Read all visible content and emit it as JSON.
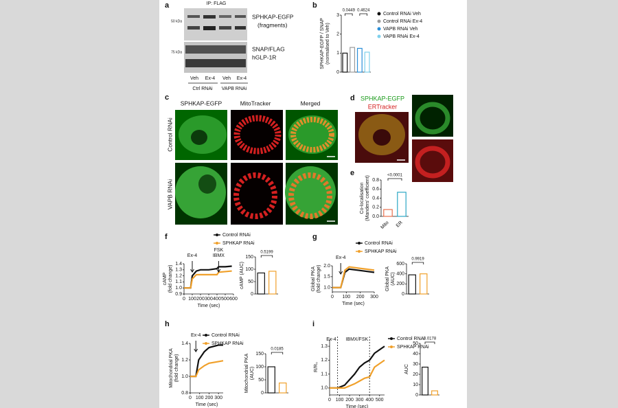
{
  "figure": {
    "a": {
      "panel": "a",
      "header": "IP: FLAG",
      "markers": [
        "50 kDa",
        "75 kDa"
      ],
      "band_labels": [
        "SPHKAP-EGFP",
        "(fragments)",
        "SNAP/FLAG",
        "hGLP-1R"
      ],
      "lanes": [
        "Veh",
        "Ex-4",
        "Veh",
        "Ex-4"
      ],
      "groups": [
        "Ctrl RNAi",
        "VAPB RNAi"
      ]
    },
    "c": {
      "panel": "c",
      "columns": [
        "SPHKAP-EGFP",
        "MitoTracker",
        "Merged"
      ],
      "rows": [
        "Control RNAi",
        "VAPB RNAi"
      ]
    },
    "d": {
      "panel": "d",
      "title_green": "SPHKAP-EGFP",
      "title_red": "ERTracker"
    }
  },
  "chart_data": [
    {
      "type": "bar",
      "panel": "b",
      "ylabel": [
        "SPHKAP-EGFP / SNAP",
        "(normalised to Veh)"
      ],
      "ylim": [
        0,
        3
      ],
      "yticks": [
        0,
        1,
        2,
        3
      ],
      "annotations": [
        "0.0449",
        "0.4624"
      ],
      "series": [
        {
          "name": "Control RNAi Veh",
          "color": "#111111",
          "values": [
            1.0
          ]
        },
        {
          "name": "Control RNAi Ex-4",
          "color": "#9a9a9a",
          "values": [
            1.3
          ]
        },
        {
          "name": "VAPB RNAi Veh",
          "color": "#2a8fd8",
          "values": [
            1.25
          ]
        },
        {
          "name": "VAPB RNAi Ex-4",
          "color": "#7fd0ec",
          "values": [
            1.05
          ]
        }
      ]
    },
    {
      "type": "bar",
      "panel": "e",
      "ylabel": [
        "Co-localisation",
        "(Manders' coefficient)"
      ],
      "categories": [
        "Mito",
        "ER"
      ],
      "values": [
        0.15,
        0.53
      ],
      "colors": [
        "#e8704d",
        "#2aa6c4"
      ],
      "ylim": [
        0,
        0.8
      ],
      "yticks": [
        {
          "value": 0,
          "label": "0.0"
        },
        0.2,
        0.4,
        0.6,
        0.8
      ],
      "annotations": [
        "<0.0001"
      ]
    },
    {
      "type": "line",
      "panel": "f",
      "ylabel": [
        "cAMP",
        "(fold change)"
      ],
      "xlabel": "Time (sec)",
      "xlim": [
        0,
        600
      ],
      "xticks": [
        0,
        100,
        200,
        300,
        400,
        500,
        600
      ],
      "ylim": [
        0.9,
        1.4
      ],
      "yticks": [
        0.9,
        {
          "value": 1.0,
          "label": "1.0"
        },
        1.1,
        1.2,
        1.3,
        1.4
      ],
      "events_style": "arrow",
      "events": [
        {
          "x": 100,
          "label": [
            "Ex-4"
          ]
        },
        {
          "x": 420,
          "label": [
            "FSK",
            "IBMX"
          ]
        }
      ],
      "x": [
        0,
        80,
        100,
        150,
        200,
        300,
        400,
        420,
        500,
        580
      ],
      "series": [
        {
          "name": "Control RNAi",
          "color": "#111111",
          "values": [
            1.0,
            1.0,
            1.2,
            1.28,
            1.3,
            1.3,
            1.32,
            1.35,
            1.35,
            1.36
          ]
        },
        {
          "name": "SPHKAP RNAi",
          "color": "#f0a02a",
          "values": [
            1.0,
            1.0,
            1.15,
            1.22,
            1.22,
            1.22,
            1.22,
            1.26,
            1.27,
            1.28
          ]
        }
      ]
    },
    {
      "type": "bar",
      "ylabel": [
        "cAMP (AUC)"
      ],
      "values": [
        85,
        92
      ],
      "colors": [
        "#111111",
        "#f0a02a"
      ],
      "ylim": [
        0,
        150
      ],
      "yticks": [
        0,
        50,
        100,
        150
      ],
      "annotations": [
        "0.5199"
      ]
    },
    {
      "type": "line",
      "panel": "g",
      "ylabel": [
        "Global PKA",
        "(fold change)"
      ],
      "xlabel": "Time (sec)",
      "xlim": [
        0,
        300
      ],
      "xticks": [
        0,
        100,
        200,
        300
      ],
      "ylim": [
        0.8,
        2.0
      ],
      "yticks": [
        {
          "value": 1.0,
          "label": "1.0"
        },
        1.5,
        {
          "value": 2.0,
          "label": "2.0"
        }
      ],
      "events_style": "arrow",
      "events": [
        {
          "x": 60,
          "label": [
            "Ex-4"
          ]
        }
      ],
      "x": [
        0,
        60,
        90,
        120,
        180,
        240,
        300
      ],
      "series": [
        {
          "name": "Control RNAi",
          "color": "#111111",
          "values": [
            1.0,
            1.0,
            1.7,
            1.85,
            1.8,
            1.75,
            1.7
          ]
        },
        {
          "name": "SPHKAP RNAi",
          "color": "#f0a02a",
          "values": [
            1.0,
            1.0,
            1.8,
            1.95,
            1.9,
            1.85,
            1.8
          ]
        }
      ]
    },
    {
      "type": "bar",
      "ylabel": [
        "Global PKA",
        "(AUC)"
      ],
      "values": [
        380,
        400
      ],
      "colors": [
        "#111111",
        "#f0a02a"
      ],
      "ylim": [
        0,
        600
      ],
      "yticks": [
        0,
        200,
        400,
        600
      ],
      "annotations": [
        "0.9919"
      ]
    },
    {
      "type": "line",
      "panel": "h",
      "ylabel": [
        "Mitochondrial PKA",
        "(fold change)"
      ],
      "xlabel": "Time (sec)",
      "xlim": [
        0,
        350
      ],
      "xticks": [
        0,
        100,
        200,
        300
      ],
      "ylim": [
        0.8,
        1.4
      ],
      "yticks": [
        0.8,
        {
          "value": 1.0,
          "label": "1.0"
        },
        1.2,
        1.4
      ],
      "events_style": "arrow",
      "events": [
        {
          "x": 60,
          "label": [
            "Ex-4"
          ]
        }
      ],
      "x": [
        0,
        60,
        90,
        150,
        200,
        300,
        350
      ],
      "series": [
        {
          "name": "Control RNAi",
          "color": "#111111",
          "values": [
            1.0,
            1.0,
            1.2,
            1.3,
            1.35,
            1.38,
            1.38
          ]
        },
        {
          "name": "SPHKAP RNAi",
          "color": "#f0a02a",
          "values": [
            1.0,
            1.0,
            1.08,
            1.13,
            1.16,
            1.18,
            1.19
          ]
        }
      ]
    },
    {
      "type": "bar",
      "ylabel": [
        "Mitochondrial PKA",
        "(AUC)"
      ],
      "values": [
        100,
        38
      ],
      "colors": [
        "#111111",
        "#f0a02a"
      ],
      "ylim": [
        0,
        150
      ],
      "yticks": [
        0,
        50,
        100,
        150
      ],
      "annotations": [
        "0.0185"
      ]
    },
    {
      "type": "line",
      "panel": "i",
      "ylabel": [
        "R/R₀"
      ],
      "xlabel": "Time (sec)",
      "xlim": [
        0,
        550
      ],
      "xticks": [
        0,
        100,
        200,
        300,
        400,
        500
      ],
      "ylim": [
        0.95,
        1.35
      ],
      "yticks": [
        {
          "value": 1.0,
          "label": "1.0"
        },
        1.1,
        1.2,
        1.3
      ],
      "events_style": "dashed",
      "events": [
        {
          "x": 80,
          "label": [
            "Ex-4"
          ]
        },
        {
          "x": 400,
          "label": [
            "IBMX/FSK"
          ]
        }
      ],
      "x": [
        0,
        80,
        150,
        250,
        300,
        350,
        400,
        450,
        550
      ],
      "series": [
        {
          "name": "Control RNAi",
          "color": "#111111",
          "values": [
            1.0,
            1.0,
            1.02,
            1.1,
            1.15,
            1.18,
            1.2,
            1.25,
            1.3
          ]
        },
        {
          "name": "SPHKAP RNAi",
          "color": "#f0a02a",
          "values": [
            1.0,
            1.0,
            1.0,
            1.03,
            1.05,
            1.07,
            1.08,
            1.15,
            1.2
          ]
        }
      ]
    },
    {
      "type": "bar",
      "ylabel": [
        "AUC"
      ],
      "values": [
        27,
        4
      ],
      "colors": [
        "#111111",
        "#f0a02a"
      ],
      "ylim": [
        0,
        50
      ],
      "yticks": [
        0,
        10,
        20,
        30,
        40,
        50
      ],
      "annotations": [
        "0.0178"
      ]
    }
  ]
}
